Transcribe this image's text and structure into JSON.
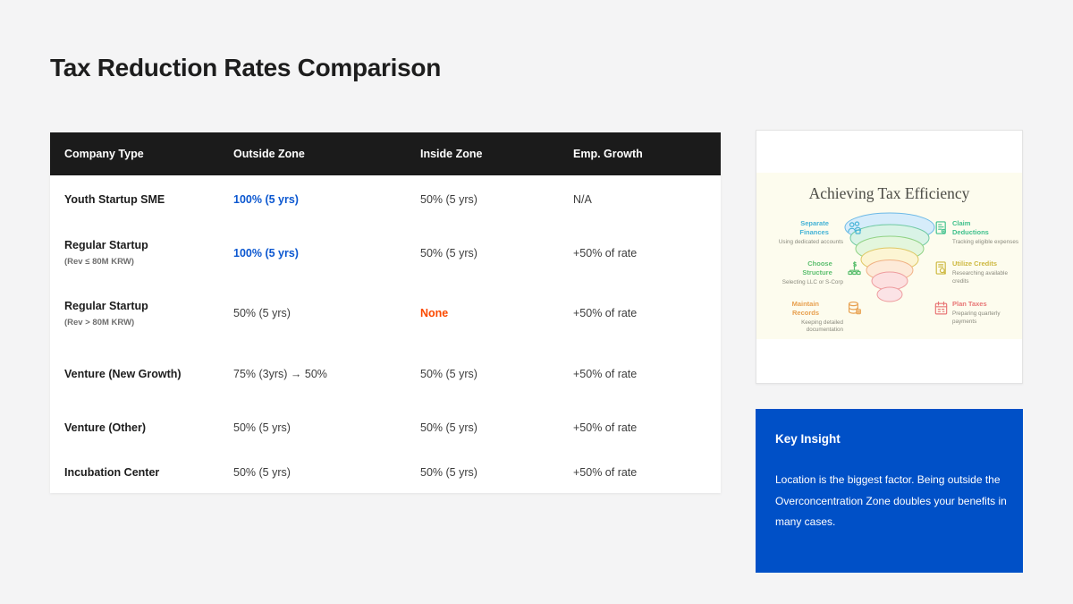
{
  "slide": {
    "title": "Tax Reduction Rates Comparison"
  },
  "table": {
    "columns": [
      "Company Type",
      "Outside Zone",
      "Inside Zone",
      "Emp. Growth"
    ],
    "rows": [
      {
        "company": "Youth Startup SME",
        "note": "",
        "outside": "100% (5 yrs)",
        "outside_cls": "accent",
        "inside": "50% (5 yrs)",
        "inside_cls": "",
        "growth": "N/A"
      },
      {
        "company": "Regular Startup",
        "note": "(Rev ≤ 80M KRW)",
        "outside": "100% (5 yrs)",
        "outside_cls": "accent",
        "inside": "50% (5 yrs)",
        "inside_cls": "",
        "growth": "+50% of rate"
      },
      {
        "company": "Regular Startup",
        "note": "(Rev > 80M KRW)",
        "outside": "50% (5 yrs)",
        "outside_cls": "",
        "inside": "None",
        "inside_cls": "warning",
        "growth": "+50% of rate"
      },
      {
        "company": "Venture (New Growth)",
        "note": "",
        "outside": "75% (3yrs) → 50%",
        "outside_cls": "",
        "inside": "50% (5 yrs)",
        "inside_cls": "",
        "growth": "+50% of rate"
      },
      {
        "company": "Venture (Other)",
        "note": "",
        "outside": "50% (5 yrs)",
        "outside_cls": "",
        "inside": "50% (5 yrs)",
        "inside_cls": "",
        "growth": "+50% of rate"
      },
      {
        "company": "Incubation Center",
        "note": "",
        "outside": "50% (5 yrs)",
        "outside_cls": "",
        "inside": "50% (5 yrs)",
        "inside_cls": "",
        "growth": "+50% of rate"
      }
    ]
  },
  "funnel_card": {
    "title": "Achieving Tax Efficiency",
    "left_items": [
      {
        "title": "Separate Finances",
        "sub": "Using dedicated accounts",
        "color": "#45b3d6",
        "icon": "people-icon"
      },
      {
        "title": "Choose Structure",
        "sub": "Selecting LLC or S-Corp",
        "color": "#5cbf6f",
        "icon": "org-structure-icon"
      },
      {
        "title": "Maintain Records",
        "sub": "Keeping detailed documentation",
        "color": "#e8a04f",
        "icon": "records-icon"
      }
    ],
    "right_items": [
      {
        "title": "Claim Deductions",
        "sub": "Tracking eligible expenses",
        "color": "#3fc18d",
        "icon": "document-check-icon"
      },
      {
        "title": "Utilize Credits",
        "sub": "Researching available credits",
        "color": "#cdb83f",
        "icon": "document-search-icon"
      },
      {
        "title": "Plan Taxes",
        "sub": "Preparing quarterly payments",
        "color": "#e87676",
        "icon": "calendar-icon"
      }
    ],
    "bands": [
      {
        "fill": "#d6ecfa",
        "stroke": "#6cb9e6"
      },
      {
        "fill": "#d9f3e6",
        "stroke": "#6fc9a3"
      },
      {
        "fill": "#e3f6dd",
        "stroke": "#90d284"
      },
      {
        "fill": "#fcf5d3",
        "stroke": "#dec763"
      },
      {
        "fill": "#fdead9",
        "stroke": "#f0b184"
      },
      {
        "fill": "#fce0e0",
        "stroke": "#ee9c9e"
      },
      {
        "fill": "#fbe3e6",
        "stroke": "#ee9c9e"
      }
    ]
  },
  "insight": {
    "title": "Key Insight",
    "body": "Location is the biggest factor. Being outside the Overconcentration Zone doubles your benefits in many cases."
  },
  "colors": {
    "page_bg": "#f4f4f5",
    "table_header_bg": "#1b1b1b",
    "accent_blue": "#0b57d0",
    "warning_orange": "#fb4a00",
    "insight_bg": "#0050c7",
    "card_cream": "#fdfcee"
  }
}
